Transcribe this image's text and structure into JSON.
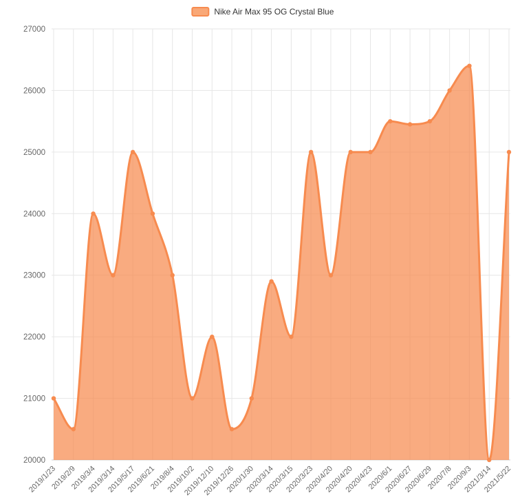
{
  "chart_data": {
    "type": "area",
    "title": "",
    "legend": [
      "Nike Air Max 95 OG Crystal Blue"
    ],
    "legend_position": "top-center",
    "grid": true,
    "smooth": true,
    "categories": [
      "2019/1/23",
      "2019/2/9",
      "2019/3/4",
      "2019/3/14",
      "2019/5/17",
      "2019/6/21",
      "2019/8/4",
      "2019/10/2",
      "2019/12/10",
      "2019/12/26",
      "2020/1/30",
      "2020/3/14",
      "2020/3/15",
      "2020/3/23",
      "2020/4/20",
      "2020/4/20",
      "2020/4/23",
      "2020/6/1",
      "2020/6/27",
      "2020/6/29",
      "2020/7/8",
      "2020/9/3",
      "2021/3/14",
      "2021/5/22"
    ],
    "series": [
      {
        "name": "Nike Air Max 95 OG Crystal Blue",
        "values": [
          21000,
          20500,
          24000,
          23000,
          25000,
          24000,
          23000,
          21000,
          22000,
          20500,
          21000,
          22900,
          22000,
          25000,
          23000,
          25000,
          25000,
          25500,
          25450,
          25500,
          26000,
          26400,
          20000,
          25000
        ]
      }
    ],
    "xlabel": "",
    "ylabel": "",
    "ylim": [
      20000,
      27000
    ],
    "ytick_interval": 1000,
    "ytick_labels": [
      "20000",
      "21000",
      "22000",
      "23000",
      "24000",
      "25000",
      "26000",
      "27000"
    ],
    "colors": {
      "line": "#f78b4f",
      "fill": "rgba(247,139,79,0.72)",
      "legend_marker_fill": "#f9a877",
      "grid_line": "#e6e6e6",
      "axis_line": "#cccccc",
      "axis_label": "#666666"
    }
  }
}
